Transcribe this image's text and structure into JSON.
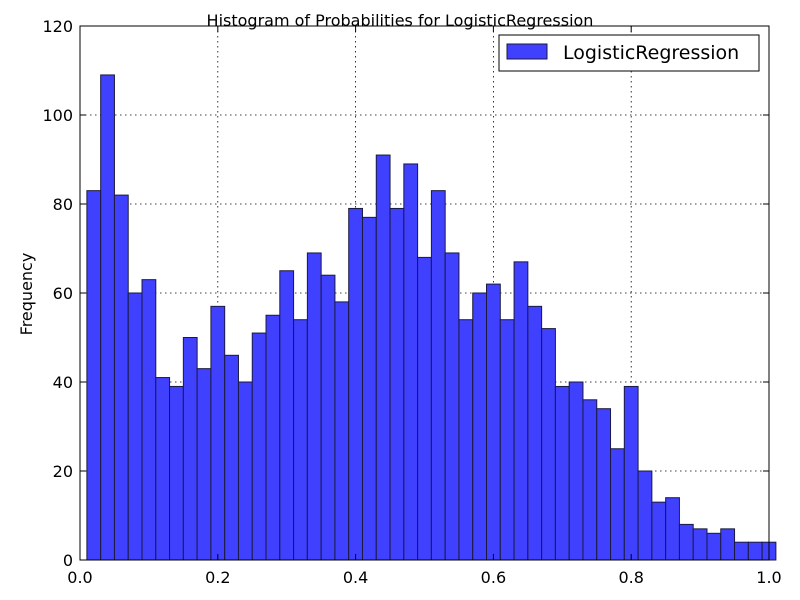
{
  "chart_data": {
    "type": "bar",
    "title": "Histogram of Probabilities for LogisticRegression",
    "xlabel": "",
    "ylabel": "Frequency",
    "xlim": [
      0.0,
      1.0
    ],
    "ylim": [
      0,
      120
    ],
    "x_ticks": [
      "0.0",
      "0.2",
      "0.4",
      "0.6",
      "0.8",
      "1.0"
    ],
    "y_ticks": [
      "0",
      "20",
      "40",
      "60",
      "80",
      "100",
      "120"
    ],
    "grid": true,
    "legend_position": "top-right",
    "bin_edges_start": 0.01,
    "bin_width": 0.02,
    "series": [
      {
        "name": "LogisticRegression",
        "color": "#4040ff",
        "values": [
          83,
          109,
          82,
          60,
          63,
          41,
          39,
          50,
          43,
          57,
          46,
          40,
          51,
          55,
          65,
          54,
          69,
          64,
          58,
          79,
          77,
          91,
          79,
          89,
          68,
          83,
          69,
          54,
          60,
          62,
          54,
          67,
          57,
          52,
          39,
          40,
          36,
          34,
          25,
          39,
          20,
          13,
          14,
          8,
          7,
          6,
          7,
          4,
          4,
          4
        ]
      }
    ]
  }
}
